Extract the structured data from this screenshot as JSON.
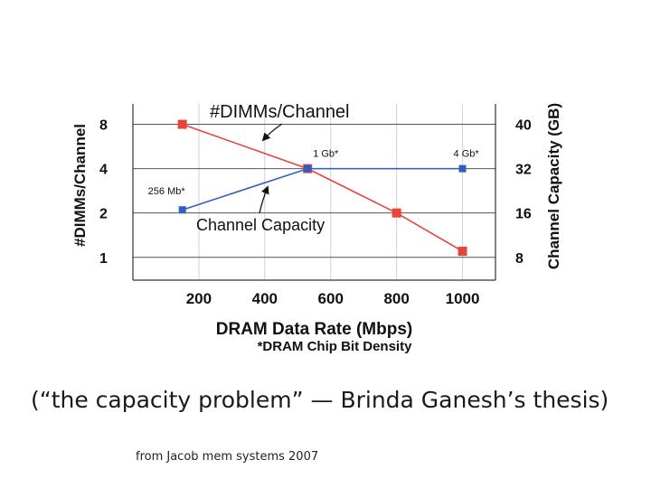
{
  "chart_data": {
    "type": "line",
    "x": [
      150,
      530,
      800,
      1000
    ],
    "xlabel": "DRAM Data Rate (Mbps)",
    "x_ticks": [
      "200",
      "400",
      "600",
      "800",
      "1000"
    ],
    "x_tick_values": [
      200,
      400,
      600,
      800,
      1000
    ],
    "xlim": [
      0,
      1100
    ],
    "footnote": "*DRAM Chip Bit Density",
    "y_left_label": "#DIMMs/Channel",
    "y_left_ticks": [
      "1",
      "2",
      "4",
      "8"
    ],
    "y_left_tick_values": [
      1,
      2,
      4,
      8
    ],
    "y_left_scale": "log2",
    "y_left_range": [
      0.7,
      11
    ],
    "y_right_label": "Channel Capacity (GB)",
    "y_right_ticks": [
      "8",
      "16",
      "32",
      "40"
    ],
    "y_right_tick_values": [
      8,
      16,
      32,
      40
    ],
    "series": [
      {
        "name": "#DIMMs/Channel",
        "axis": "left",
        "color": "#e8453a",
        "x": [
          150,
          530,
          800,
          1000
        ],
        "values": [
          8,
          4,
          2,
          1.1
        ]
      },
      {
        "name": "Channel Capacity",
        "axis": "left",
        "color": "#2f5fbf",
        "x": [
          150,
          530,
          1000
        ],
        "values": [
          2.1,
          4,
          4
        ]
      }
    ],
    "annotations": [
      {
        "text": "#DIMMs/Channel",
        "series": "#DIMMs/Channel"
      },
      {
        "text": "Channel Capacity",
        "series": "Channel Capacity"
      },
      {
        "text": "256 Mb*",
        "x": 150,
        "series": "Channel Capacity"
      },
      {
        "text": "1 Gb*",
        "x": 530,
        "series": "Channel Capacity"
      },
      {
        "text": "4 Gb*",
        "x": 1000,
        "series": "Channel Capacity"
      }
    ]
  },
  "caption": "(“the capacity problem” — Brinda Ganesh’s thesis)",
  "source": "from Jacob mem systems 2007"
}
